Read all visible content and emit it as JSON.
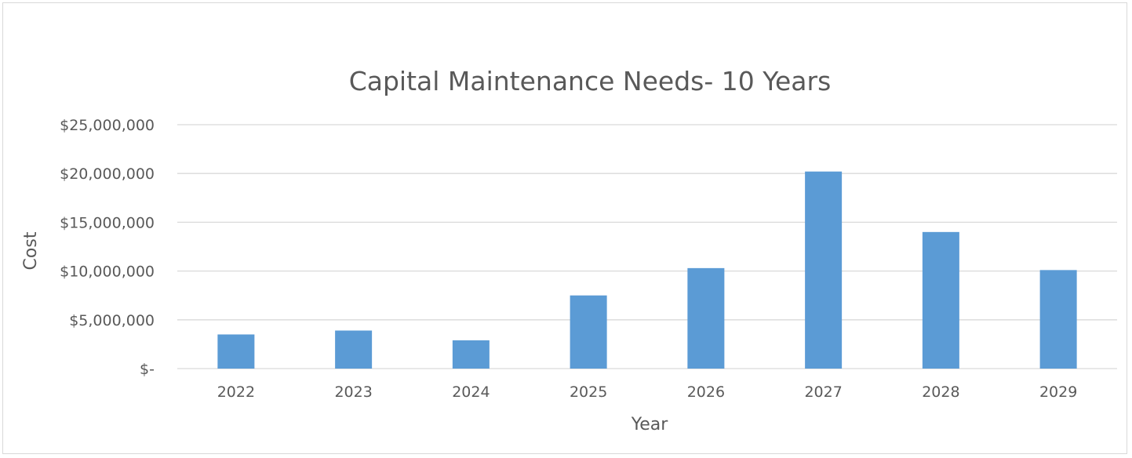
{
  "chart_data": {
    "type": "bar",
    "title": "Capital Maintenance Needs- 10 Years",
    "xlabel": "Year",
    "ylabel": "Cost",
    "categories": [
      "2022",
      "2023",
      "2024",
      "2025",
      "2026",
      "2027",
      "2028",
      "2029"
    ],
    "values": [
      3500000,
      3900000,
      2900000,
      7500000,
      10300000,
      20200000,
      14000000,
      10100000
    ],
    "ylim": [
      0,
      25000000
    ],
    "yticks": [
      0,
      5000000,
      10000000,
      15000000,
      20000000,
      25000000
    ],
    "ytick_labels": [
      "$-",
      "$5,000,000",
      "$10,000,000",
      "$15,000,000",
      "$20,000,000",
      "$25,000,000"
    ],
    "grid": true,
    "legend": "none",
    "bar_color": "#5b9bd5",
    "grid_color": "#d9d9d9"
  }
}
